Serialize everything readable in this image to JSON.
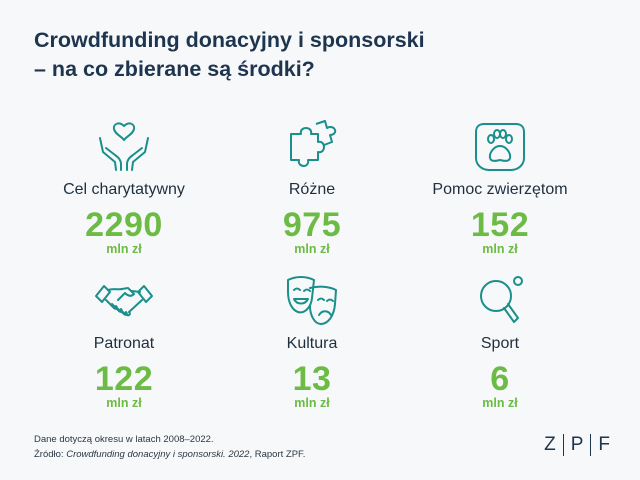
{
  "title": {
    "line1": "Crowdfunding donacyjny i sponsorski",
    "line2": "– na co zbierane są środki?"
  },
  "colors": {
    "icon": "#1a8f8b",
    "value": "#6cbb45",
    "title": "#1e3550"
  },
  "chart_data": {
    "type": "table",
    "title": "Crowdfunding donacyjny i sponsorski – na co zbierane są środki?",
    "unit": "mln zł",
    "categories": [
      "Cel charytatywny",
      "Różne",
      "Pomoc zwierzętom",
      "Patronat",
      "Kultura",
      "Sport"
    ],
    "values": [
      2290,
      975,
      152,
      122,
      13,
      6
    ],
    "icons": [
      "hands-heart-icon",
      "puzzle-icon",
      "paw-icon",
      "handshake-icon",
      "theater-masks-icon",
      "ping-pong-icon"
    ]
  },
  "stats": [
    {
      "label": "Cel charytatywny",
      "value": "2290",
      "unit": "mln zł"
    },
    {
      "label": "Różne",
      "value": "975",
      "unit": "mln zł"
    },
    {
      "label": "Pomoc zwierzętom",
      "value": "152",
      "unit": "mln zł"
    },
    {
      "label": "Patronat",
      "value": "122",
      "unit": "mln zł"
    },
    {
      "label": "Kultura",
      "value": "13",
      "unit": "mln zł"
    },
    {
      "label": "Sport",
      "value": "6",
      "unit": "mln zł"
    }
  ],
  "footnote": {
    "line1": "Dane dotyczą okresu w latach 2008–2022.",
    "source_prefix": "Źródło: ",
    "source_title": "Crowdfunding donacyjny i sponsorski. 2022",
    "source_suffix": ", Raport ZPF."
  },
  "logo": {
    "letters": [
      "Z",
      "P",
      "F"
    ]
  }
}
